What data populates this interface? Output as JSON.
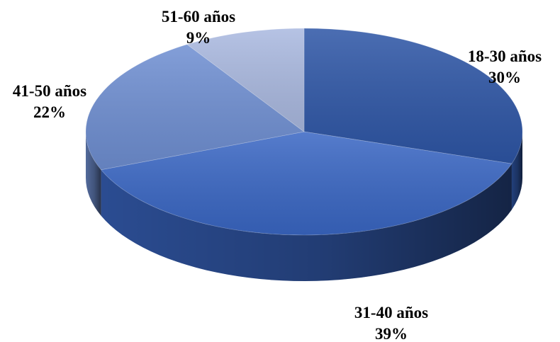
{
  "chart_data": {
    "type": "pie",
    "style": "3d",
    "title": "",
    "categories": [
      "18-30 años",
      "31-40 años",
      "41-50 años",
      "51-60 años"
    ],
    "values": [
      30,
      39,
      22,
      9
    ],
    "labels": [
      "30%",
      "39%",
      "22%",
      "9%"
    ],
    "colors": [
      "#2e56a6",
      "#3a67c4",
      "#6f8fd2",
      "#aab9e0"
    ],
    "legend": "none"
  }
}
